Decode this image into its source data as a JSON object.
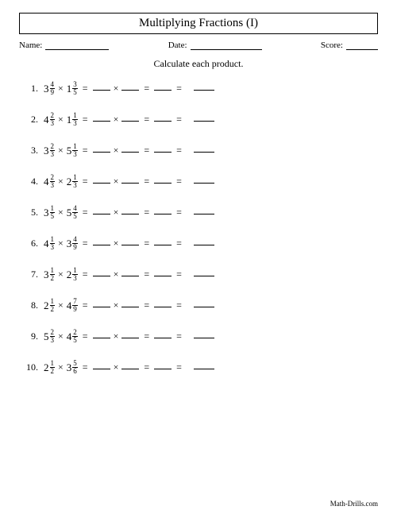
{
  "title": "Multiplying Fractions (I)",
  "meta": {
    "name_label": "Name:",
    "date_label": "Date:",
    "score_label": "Score:",
    "name_blank_width": 80,
    "date_blank_width": 90,
    "score_blank_width": 40
  },
  "instruction": "Calculate each product.",
  "operator": "×",
  "equals": "=",
  "problems": [
    {
      "n": "1.",
      "a": {
        "w": "3",
        "num": "4",
        "den": "9"
      },
      "b": {
        "w": "1",
        "num": "3",
        "den": "5"
      }
    },
    {
      "n": "2.",
      "a": {
        "w": "4",
        "num": "2",
        "den": "3"
      },
      "b": {
        "w": "1",
        "num": "1",
        "den": "3"
      }
    },
    {
      "n": "3.",
      "a": {
        "w": "3",
        "num": "2",
        "den": "3"
      },
      "b": {
        "w": "5",
        "num": "1",
        "den": "3"
      }
    },
    {
      "n": "4.",
      "a": {
        "w": "4",
        "num": "2",
        "den": "3"
      },
      "b": {
        "w": "2",
        "num": "1",
        "den": "3"
      }
    },
    {
      "n": "5.",
      "a": {
        "w": "3",
        "num": "1",
        "den": "5"
      },
      "b": {
        "w": "5",
        "num": "4",
        "den": "5"
      }
    },
    {
      "n": "6.",
      "a": {
        "w": "4",
        "num": "1",
        "den": "3"
      },
      "b": {
        "w": "3",
        "num": "4",
        "den": "9"
      }
    },
    {
      "n": "7.",
      "a": {
        "w": "3",
        "num": "1",
        "den": "2"
      },
      "b": {
        "w": "2",
        "num": "1",
        "den": "3"
      }
    },
    {
      "n": "8.",
      "a": {
        "w": "2",
        "num": "1",
        "den": "2"
      },
      "b": {
        "w": "4",
        "num": "7",
        "den": "9"
      }
    },
    {
      "n": "9.",
      "a": {
        "w": "5",
        "num": "2",
        "den": "3"
      },
      "b": {
        "w": "4",
        "num": "2",
        "den": "5"
      }
    },
    {
      "n": "10.",
      "a": {
        "w": "2",
        "num": "1",
        "den": "2"
      },
      "b": {
        "w": "3",
        "num": "5",
        "den": "6"
      }
    }
  ],
  "footer": "Math-Drills.com",
  "colors": {
    "text": "#000000",
    "bg": "#ffffff",
    "border": "#000000"
  },
  "typography": {
    "title_fontsize": 15,
    "body_fontsize": 12,
    "frac_fontsize": 9,
    "footer_fontsize": 9
  }
}
